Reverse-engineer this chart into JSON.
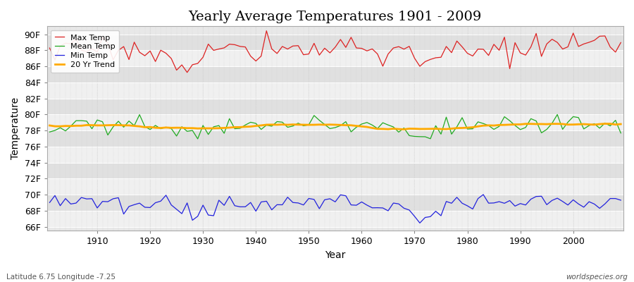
{
  "title": "Yearly Average Temperatures 1901 - 2009",
  "xlabel": "Year",
  "ylabel": "Temperature",
  "subtitle_left": "Latitude 6.75 Longitude -7.25",
  "subtitle_right": "worldspecies.org",
  "year_start": 1901,
  "year_end": 2009,
  "yticks": [
    66,
    68,
    70,
    72,
    74,
    76,
    78,
    80,
    82,
    84,
    86,
    88,
    90
  ],
  "ylim": [
    65.5,
    91.0
  ],
  "xticks": [
    1910,
    1920,
    1930,
    1940,
    1950,
    1960,
    1970,
    1980,
    1990,
    2000
  ],
  "bg_color": "#ffffff",
  "plot_bg_color": "#e8e8e8",
  "line_colors": {
    "max": "#dd2222",
    "mean": "#22aa22",
    "min": "#2222dd",
    "trend": "#ffaa00"
  },
  "legend_labels": [
    "Max Temp",
    "Mean Temp",
    "Min Temp",
    "20 Yr Trend"
  ],
  "grid_color": "#ffffff",
  "grid_color2": "#dddddd",
  "max_temp_base": 88.1,
  "mean_temp_base": 78.6,
  "min_temp_base": 69.0,
  "title_fontsize": 14,
  "axis_fontsize": 9,
  "legend_fontsize": 8
}
